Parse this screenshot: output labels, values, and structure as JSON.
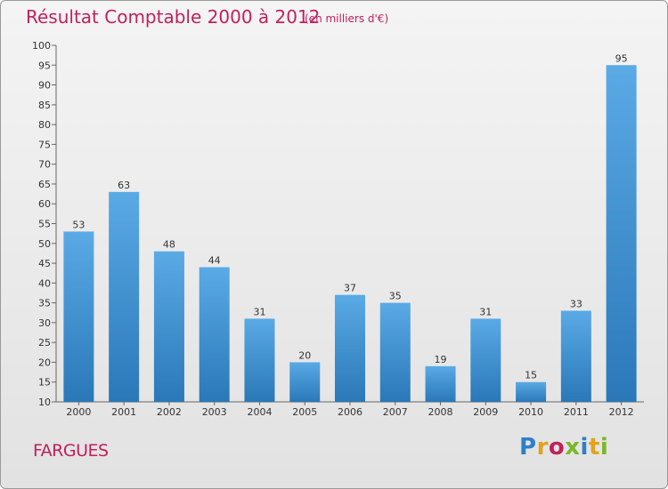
{
  "chart_data": {
    "type": "bar",
    "title": "Résultat Comptable 2000 à 2012",
    "subtitle": "(en milliers d'€)",
    "categories": [
      "2000",
      "2001",
      "2002",
      "2003",
      "2004",
      "2005",
      "2006",
      "2007",
      "2008",
      "2009",
      "2010",
      "2011",
      "2012"
    ],
    "values": [
      53,
      63,
      48,
      44,
      31,
      20,
      37,
      35,
      19,
      31,
      15,
      33,
      95
    ],
    "ylim": [
      10,
      100
    ],
    "yticks": [
      10,
      15,
      20,
      25,
      30,
      35,
      40,
      45,
      50,
      55,
      60,
      65,
      70,
      75,
      80,
      85,
      90,
      95,
      100
    ],
    "xlabel": "",
    "ylabel": "",
    "grid": false,
    "bar_color_top": "#5aaae6",
    "bar_color_bottom": "#2a78b8"
  },
  "footer": {
    "commune": "FARGUES",
    "logo_letters": [
      {
        "ch": "P",
        "color": "#2f7fc8"
      },
      {
        "ch": "r",
        "color": "#e2a21c"
      },
      {
        "ch": "o",
        "color": "#c0215c"
      },
      {
        "ch": "x",
        "color": "#7ab82a"
      },
      {
        "ch": "i",
        "color": "#2f7fc8"
      },
      {
        "ch": "t",
        "color": "#e2a21c"
      },
      {
        "ch": "i",
        "color": "#7ab82a"
      }
    ]
  },
  "colors": {
    "accent": "#c0215c"
  }
}
